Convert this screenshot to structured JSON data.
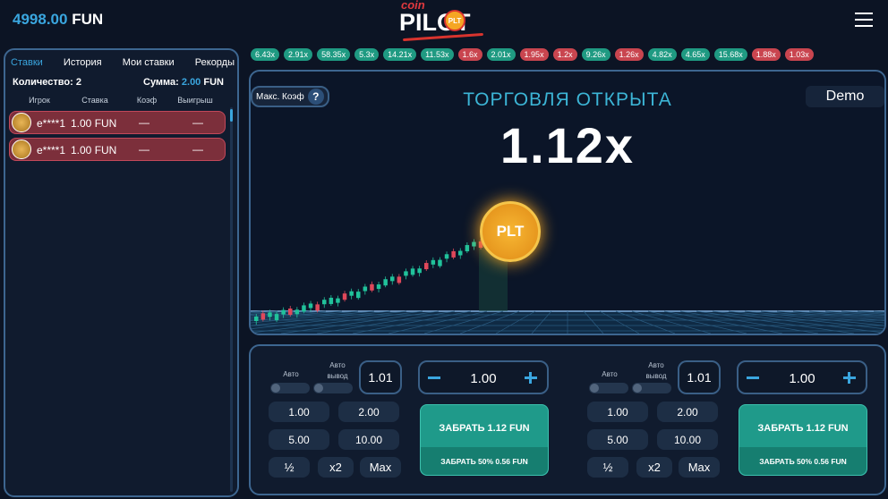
{
  "header": {
    "balance": "4998.00",
    "currency": "FUN",
    "logo_top": "coin",
    "logo_main": "PILOT",
    "logo_badge": "PLT"
  },
  "history": [
    {
      "label": "6.43x",
      "color": "#1f9a82"
    },
    {
      "label": "2.91x",
      "color": "#1f9a82"
    },
    {
      "label": "58.35x",
      "color": "#1f9a82"
    },
    {
      "label": "5.3x",
      "color": "#1f9a82"
    },
    {
      "label": "14.21x",
      "color": "#1f9a82"
    },
    {
      "label": "11.53x",
      "color": "#1f9a82"
    },
    {
      "label": "1.6x",
      "color": "#c9454f"
    },
    {
      "label": "2.01x",
      "color": "#1f9a82"
    },
    {
      "label": "1.95x",
      "color": "#c9454f"
    },
    {
      "label": "1.2x",
      "color": "#c9454f"
    },
    {
      "label": "9.26x",
      "color": "#1f9a82"
    },
    {
      "label": "1.26x",
      "color": "#c9454f"
    },
    {
      "label": "4.82x",
      "color": "#1f9a82"
    },
    {
      "label": "4.65x",
      "color": "#1f9a82"
    },
    {
      "label": "15.68x",
      "color": "#1f9a82"
    },
    {
      "label": "1.88x",
      "color": "#c9454f"
    },
    {
      "label": "1.03x",
      "color": "#c9454f"
    }
  ],
  "bets_panel": {
    "tabs": [
      "Ставки",
      "История",
      "Мои ставки",
      "Рекорды"
    ],
    "count_label": "Количество:",
    "count": "2",
    "sum_label": "Сумма:",
    "sum": "2.00",
    "sum_currency": "FUN",
    "columns": [
      "Игрок",
      "Ставка",
      "Коэф",
      "Выигрыш"
    ],
    "rows": [
      {
        "player": "e****1",
        "bet": "1.00 FUN",
        "coef": "—",
        "win": "—"
      },
      {
        "player": "e****1",
        "bet": "1.00 FUN",
        "coef": "—",
        "win": "—"
      }
    ]
  },
  "game": {
    "max_coef": "Макс. Коэф",
    "help": "?",
    "mode": "Demo",
    "status": "ТОРГОВЛЯ ОТКРЫТА",
    "multiplier": "1.12x",
    "coin": "PLT"
  },
  "bet_controls": [
    {
      "auto": "Авто",
      "auto_cashout": [
        "Авто",
        "вывод"
      ],
      "cashout": "1.01",
      "amount": "1.00",
      "quick": [
        "1.00",
        "2.00",
        "5.00",
        "10.00"
      ],
      "buttons": [
        "½",
        "x2",
        "Max"
      ],
      "cashout_button": "ЗАБРАТЬ 1.12 FUN",
      "half_button": "ЗАБРАТЬ 50% 0.56 FUN"
    },
    {
      "auto": "Авто",
      "auto_cashout": [
        "Авто",
        "вывод"
      ],
      "cashout": "1.01",
      "amount": "1.00",
      "quick": [
        "1.00",
        "2.00",
        "5.00",
        "10.00"
      ],
      "buttons": [
        "½",
        "x2",
        "Max"
      ],
      "cashout_button": "ЗАБРАТЬ 1.12 FUN",
      "half_button": "ЗАБРАТЬ 50% 0.56 FUN"
    }
  ]
}
